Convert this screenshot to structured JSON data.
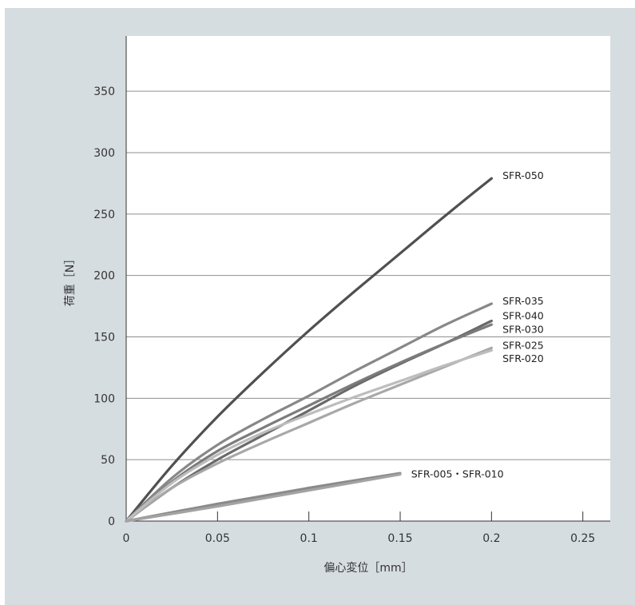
{
  "chart_data": {
    "type": "line",
    "title": "",
    "xlabel": "偏心変位［mm］",
    "ylabel": "荷重［N］",
    "xlim": [
      0,
      0.265
    ],
    "ylim": [
      0,
      395
    ],
    "xticks": [
      0,
      0.05,
      0.1,
      0.15,
      0.2,
      0.25
    ],
    "xtick_labels": [
      "0",
      "0.05",
      "0.1",
      "0.15",
      "0.2",
      "0.25"
    ],
    "yticks": [
      0,
      50,
      100,
      150,
      200,
      250,
      300,
      350
    ],
    "ytick_labels": [
      "0",
      "50",
      "100",
      "150",
      "200",
      "250",
      "300",
      "350"
    ],
    "grid": "horizontal",
    "legend": "inline labels at line ends",
    "series": [
      {
        "name": "SFR-050",
        "color": "#505050",
        "x": [
          0,
          0.025,
          0.05,
          0.075,
          0.1,
          0.125,
          0.15,
          0.175,
          0.2
        ],
        "y": [
          0,
          45,
          85,
          121,
          155,
          187,
          218,
          249,
          279
        ]
      },
      {
        "name": "SFR-035",
        "color": "#888888",
        "x": [
          0,
          0.025,
          0.05,
          0.075,
          0.1,
          0.125,
          0.15,
          0.175,
          0.2
        ],
        "y": [
          0,
          35,
          62,
          83,
          102,
          122,
          141,
          160,
          177
        ]
      },
      {
        "name": "SFR-040",
        "color": "#6a6a6a",
        "x": [
          0,
          0.025,
          0.05,
          0.075,
          0.1,
          0.125,
          0.15,
          0.175,
          0.2
        ],
        "y": [
          0,
          27,
          50,
          70,
          90,
          110,
          128,
          145,
          163
        ]
      },
      {
        "name": "SFR-030",
        "color": "#7c7c7c",
        "x": [
          0,
          0.025,
          0.05,
          0.075,
          0.1,
          0.125,
          0.15,
          0.175,
          0.2
        ],
        "y": [
          0,
          32,
          57,
          76,
          94,
          112,
          129,
          145,
          160
        ]
      },
      {
        "name": "SFR-025",
        "color": "#a8a8a8",
        "x": [
          0,
          0.025,
          0.05,
          0.075,
          0.1,
          0.125,
          0.15,
          0.175,
          0.2
        ],
        "y": [
          0,
          27,
          47,
          64,
          80,
          96,
          111,
          126,
          141
        ]
      },
      {
        "name": "SFR-020",
        "color": "#bdbdbd",
        "x": [
          0,
          0.025,
          0.05,
          0.075,
          0.1,
          0.125,
          0.15,
          0.175,
          0.2
        ],
        "y": [
          0,
          31,
          54,
          72,
          87,
          101,
          114,
          127,
          139
        ]
      },
      {
        "name": "SFR-005・SFR-010",
        "color": "#8a8a8a",
        "x": [
          0,
          0.05,
          0.1,
          0.15
        ],
        "y": [
          0,
          14,
          27,
          39
        ]
      },
      {
        "name": "",
        "color": "#a3a3a3",
        "x": [
          0,
          0.05,
          0.1,
          0.15
        ],
        "y": [
          0,
          12,
          25,
          38
        ]
      }
    ],
    "labels": [
      {
        "text": "SFR-050",
        "x": 0.206,
        "y": 281
      },
      {
        "text": "SFR-035",
        "x": 0.206,
        "y": 179
      },
      {
        "text": "SFR-040",
        "x": 0.206,
        "y": 167
      },
      {
        "text": "SFR-030",
        "x": 0.206,
        "y": 156
      },
      {
        "text": "SFR-025",
        "x": 0.206,
        "y": 143
      },
      {
        "text": "SFR-020",
        "x": 0.206,
        "y": 132
      },
      {
        "text": "SFR-005・SFR-010",
        "x": 0.156,
        "y": 38
      }
    ]
  }
}
